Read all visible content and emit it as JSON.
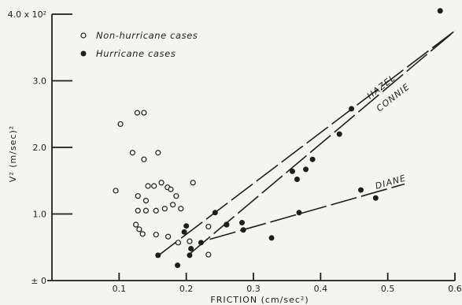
{
  "chart_data": {
    "type": "scatter",
    "title": "",
    "xlabel": "FRICTION (cm/sec²)",
    "ylabel": "V² (m/sec)²",
    "xlim": [
      0,
      0.6
    ],
    "ylim": [
      0,
      4.0
    ],
    "x_ticks": [
      {
        "value": 0.1,
        "label": "0.1"
      },
      {
        "value": 0.2,
        "label": "0.2"
      },
      {
        "value": 0.3,
        "label": "0.3"
      },
      {
        "value": 0.4,
        "label": "0.4"
      },
      {
        "value": 0.5,
        "label": "0.5"
      },
      {
        "value": 0.6,
        "label": "0.6"
      }
    ],
    "y_ticks": [
      {
        "value": 0,
        "label": "± 0"
      },
      {
        "value": 1.0,
        "label": "1.0"
      },
      {
        "value": 2.0,
        "label": "2.0"
      },
      {
        "value": 3.0,
        "label": "3.0"
      },
      {
        "value": 4.0,
        "label": "4.0 x 10²"
      }
    ],
    "legend": {
      "placement": "top-left",
      "entries": [
        {
          "marker": "open-circle",
          "label": "Non-hurricane cases"
        },
        {
          "marker": "filled-circle",
          "label": "Hurricane cases"
        }
      ]
    },
    "series": [
      {
        "name": "Non-hurricane cases",
        "marker": "open",
        "points": [
          [
            0.102,
            2.35
          ],
          [
            0.127,
            2.52
          ],
          [
            0.137,
            2.52
          ],
          [
            0.12,
            1.92
          ],
          [
            0.158,
            1.92
          ],
          [
            0.137,
            1.82
          ],
          [
            0.095,
            1.35
          ],
          [
            0.128,
            1.27
          ],
          [
            0.14,
            1.2
          ],
          [
            0.143,
            1.42
          ],
          [
            0.152,
            1.42
          ],
          [
            0.163,
            1.47
          ],
          [
            0.172,
            1.4
          ],
          [
            0.177,
            1.37
          ],
          [
            0.185,
            1.27
          ],
          [
            0.18,
            1.14
          ],
          [
            0.21,
            1.47
          ],
          [
            0.128,
            1.05
          ],
          [
            0.14,
            1.05
          ],
          [
            0.155,
            1.05
          ],
          [
            0.168,
            1.08
          ],
          [
            0.192,
            1.08
          ],
          [
            0.125,
            0.84
          ],
          [
            0.13,
            0.77
          ],
          [
            0.135,
            0.7
          ],
          [
            0.155,
            0.69
          ],
          [
            0.173,
            0.66
          ],
          [
            0.188,
            0.57
          ],
          [
            0.205,
            0.59
          ],
          [
            0.233,
            0.81
          ],
          [
            0.233,
            0.39
          ],
          [
            0.26,
            0.84
          ]
        ]
      },
      {
        "name": "Hurricane cases",
        "marker": "filled",
        "points": [
          [
            0.158,
            0.38
          ],
          [
            0.187,
            0.23
          ],
          [
            0.197,
            0.73
          ],
          [
            0.2,
            0.82
          ],
          [
            0.205,
            0.38
          ],
          [
            0.207,
            0.48
          ],
          [
            0.222,
            0.57
          ],
          [
            0.243,
            1.02
          ],
          [
            0.26,
            0.84
          ],
          [
            0.283,
            0.87
          ],
          [
            0.285,
            0.76
          ],
          [
            0.327,
            0.64
          ],
          [
            0.358,
            1.64
          ],
          [
            0.365,
            1.52
          ],
          [
            0.368,
            1.02
          ],
          [
            0.378,
            1.67
          ],
          [
            0.388,
            1.82
          ],
          [
            0.428,
            2.2
          ],
          [
            0.446,
            2.58
          ],
          [
            0.46,
            1.36
          ],
          [
            0.482,
            1.24
          ],
          [
            0.578,
            4.05
          ]
        ]
      }
    ],
    "trend_lines": [
      {
        "label": "HAZEL",
        "x": [
          0.155,
          0.6
        ],
        "y": [
          0.35,
          3.75
        ]
      },
      {
        "label": "CONNIE",
        "x": [
          0.205,
          0.6
        ],
        "y": [
          0.4,
          3.75
        ]
      },
      {
        "label": "DIANE",
        "x": [
          0.235,
          0.525
        ],
        "y": [
          0.62,
          1.45
        ]
      }
    ]
  }
}
